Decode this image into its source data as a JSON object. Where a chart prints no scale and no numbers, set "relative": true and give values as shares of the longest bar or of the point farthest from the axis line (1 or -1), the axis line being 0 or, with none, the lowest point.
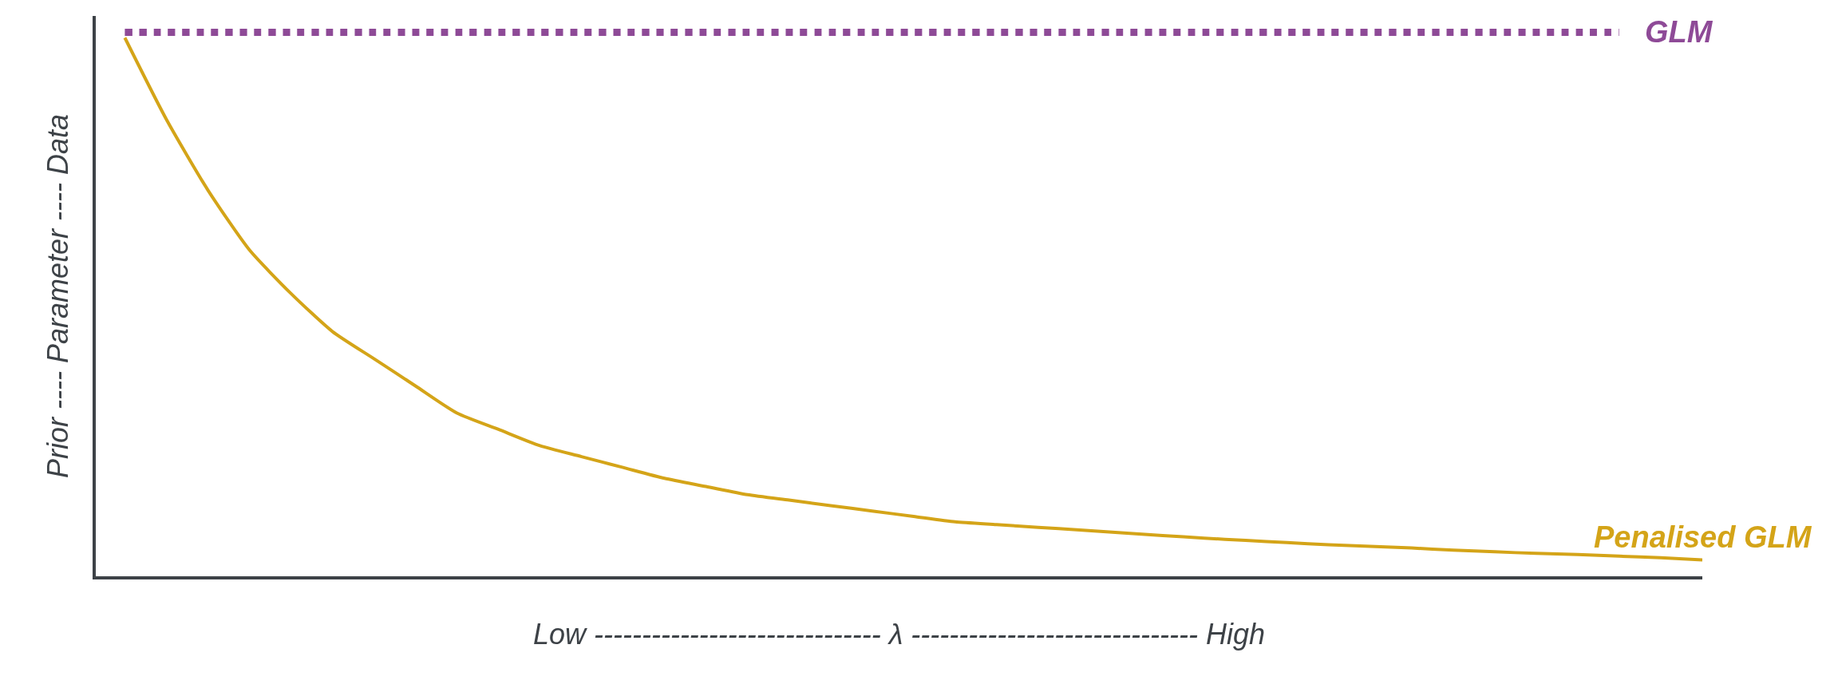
{
  "chart_data": {
    "type": "line",
    "relative": true,
    "xlabel": "Low ------------------------------ λ ------------------------------ High",
    "ylabel": "Prior ---- Parameter ---- Data",
    "categories": [
      null,
      null,
      null,
      null,
      null,
      null,
      null,
      null,
      null,
      null,
      null,
      null,
      null,
      null,
      null,
      null,
      null,
      null,
      null,
      null,
      null,
      null,
      null,
      null,
      null,
      null,
      null,
      null,
      null,
      null,
      null,
      null,
      null,
      null,
      null,
      null,
      null,
      null,
      null
    ],
    "series": [
      {
        "name": "GLM",
        "color": "#8e4a97",
        "line_style": "dotted",
        "values": [
          1,
          1,
          1,
          1,
          1,
          1,
          1,
          1,
          1,
          1,
          1,
          1,
          1,
          1,
          1,
          1,
          1,
          1,
          1,
          1,
          1,
          1,
          1,
          1,
          1,
          1,
          1,
          1,
          1,
          1,
          1,
          1,
          1,
          1,
          1,
          1,
          1,
          null,
          null
        ]
      },
      {
        "name": "Penalised GLM",
        "color": "#d4a418",
        "line_style": "solid",
        "values": [
          0.99,
          0.84,
          0.71,
          0.6,
          0.52,
          0.45,
          0.4,
          0.35,
          0.3,
          0.27,
          0.24,
          0.22,
          0.2,
          0.18,
          0.165,
          0.15,
          0.14,
          0.13,
          0.12,
          0.11,
          0.1,
          0.095,
          0.09,
          0.085,
          0.08,
          0.075,
          0.07,
          0.066,
          0.062,
          0.058,
          0.055,
          0.052,
          0.048,
          0.045,
          0.042,
          0.04,
          0.037,
          0.034,
          0.03
        ]
      }
    ],
    "legend": false,
    "marker": "none"
  }
}
